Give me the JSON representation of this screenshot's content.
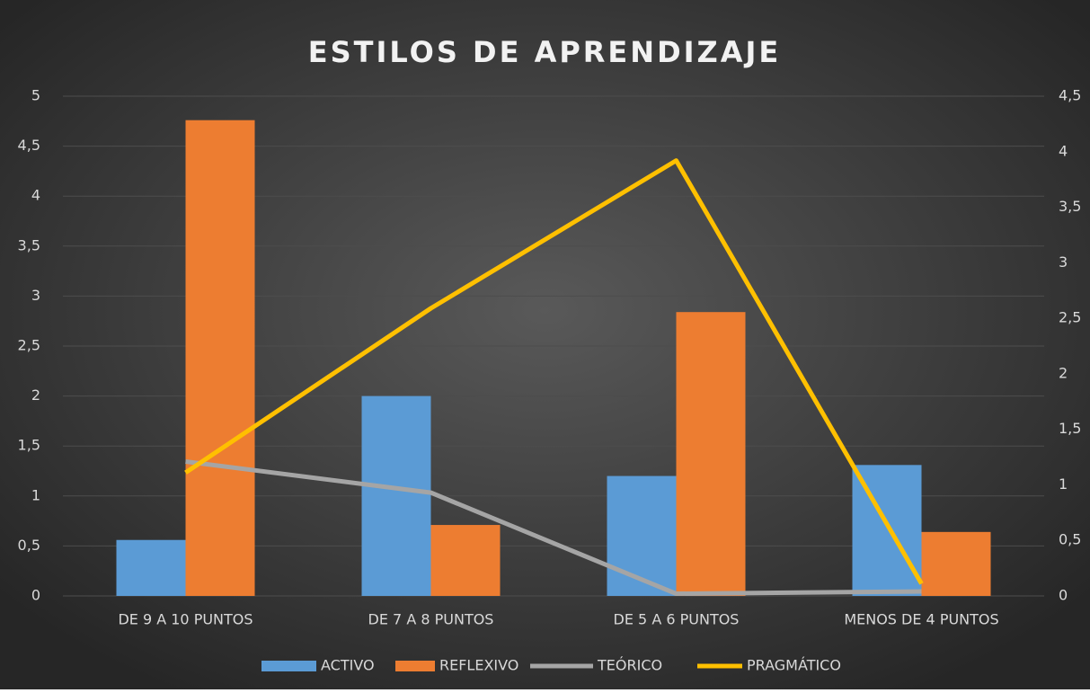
{
  "chart_data": {
    "type": "bar-line",
    "title": "ESTILOS DE APRENDIZAJE",
    "categories": [
      "DE 9 A 10 PUNTOS",
      "DE 7 A 8 PUNTOS",
      "DE 5 A 6 PUNTOS",
      "MENOS DE 4 PUNTOS"
    ],
    "series": [
      {
        "name": "ACTIVO",
        "type": "bar",
        "color": "#5b9bd5",
        "values": [
          0.56,
          2.0,
          1.2,
          1.31
        ]
      },
      {
        "name": "REFLEXIVO",
        "type": "bar",
        "color": "#ed7d31",
        "values": [
          4.76,
          0.71,
          2.84,
          0.64
        ]
      },
      {
        "name": "TEÓRICO",
        "type": "line",
        "axis": "y2",
        "color": "#a5a5a5",
        "values": [
          1.21,
          0.93,
          0.02,
          0.04
        ]
      },
      {
        "name": "PRAGMÁTICO",
        "type": "line",
        "axis": "y2",
        "color": "#ffc000",
        "values": [
          1.11,
          2.59,
          3.92,
          0.11
        ]
      }
    ],
    "ylim": [
      0,
      5
    ],
    "yticks": [
      0,
      {
        "value": 0.5,
        "label": "0,5"
      },
      1,
      {
        "value": 1.5,
        "label": "1,5"
      },
      2,
      {
        "value": 2.5,
        "label": "2,5"
      },
      3,
      {
        "value": 3.5,
        "label": "3,5"
      },
      4,
      {
        "value": 4.5,
        "label": "4,5"
      },
      5
    ],
    "y2lim": [
      0,
      4.5
    ],
    "y2ticks": [
      0,
      {
        "value": 0.5,
        "label": "0,5"
      },
      1,
      {
        "value": 1.5,
        "label": "1,5"
      },
      2,
      {
        "value": 2.5,
        "label": "2,5"
      },
      3,
      {
        "value": 3.5,
        "label": "3,5"
      },
      4,
      {
        "value": 4.5,
        "label": "4,5"
      }
    ],
    "grid": true,
    "legend": "bottom"
  }
}
